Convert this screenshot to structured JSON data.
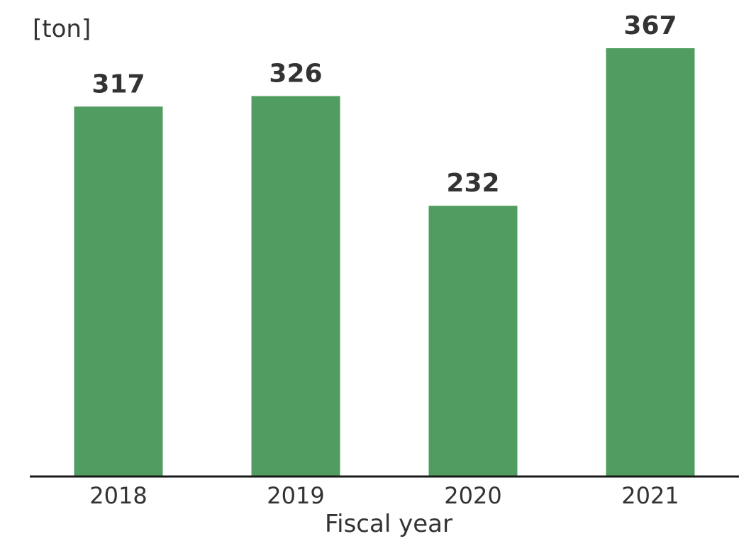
{
  "chart_data": {
    "type": "bar",
    "unit_label": "[ton]",
    "xlabel": "Fiscal year",
    "ylabel": "",
    "categories": [
      "2018",
      "2019",
      "2020",
      "2021"
    ],
    "values": [
      317,
      326,
      232,
      367
    ],
    "ylim": [
      0,
      367
    ],
    "grid": false,
    "legend": "none",
    "bar_color": "#519d61",
    "axis_color": "#1a1a1a",
    "text_color": "#333333"
  }
}
